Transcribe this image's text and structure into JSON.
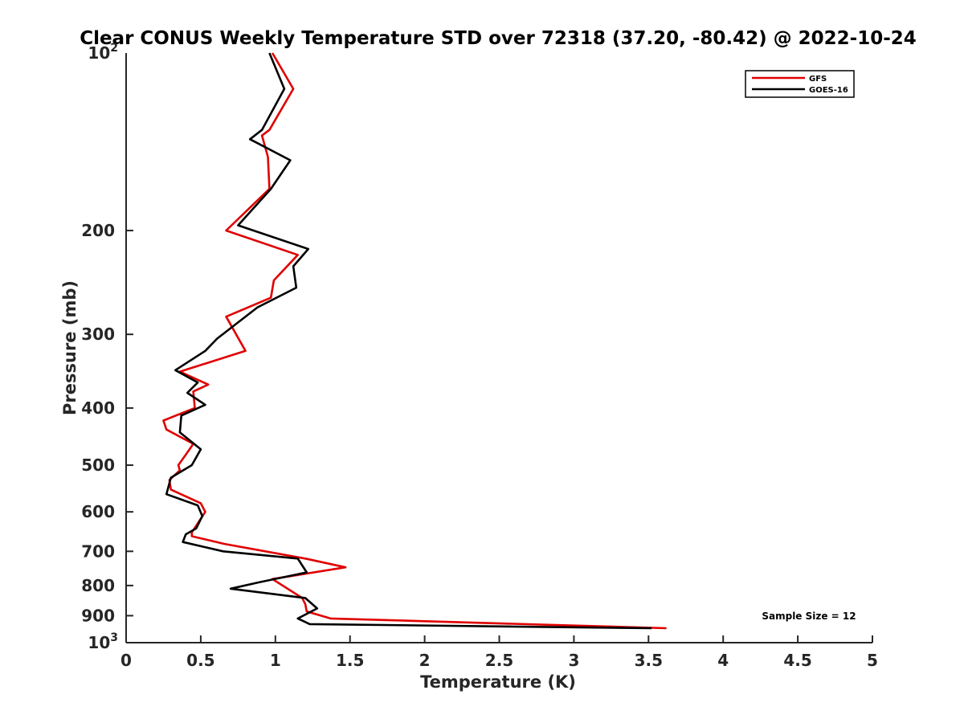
{
  "chart_data": {
    "type": "line",
    "title": "Clear CONUS Weekly Temperature STD over 72318 (37.20, -80.42) @ 2022-10-24",
    "xlabel": "Temperature (K)",
    "ylabel": "Pressure (mb)",
    "xlim": [
      0,
      5
    ],
    "ylim": [
      100,
      1000
    ],
    "y_scale": "log",
    "y_reversed": true,
    "x_ticks": [
      0,
      0.5,
      1,
      1.5,
      2,
      2.5,
      3,
      3.5,
      4,
      4.5,
      5
    ],
    "x_tick_labels": [
      "0",
      "0.5",
      "1",
      "1.5",
      "2",
      "2.5",
      "3",
      "3.5",
      "4",
      "4.5",
      "5"
    ],
    "y_ticks": [
      200,
      300,
      400,
      500,
      600,
      700,
      800,
      900
    ],
    "y_tick_labels": [
      "200",
      "300",
      "400",
      "500",
      "600",
      "700",
      "800",
      "900"
    ],
    "y_tick_top": {
      "base": "10",
      "exp": "2"
    },
    "y_tick_bottom": {
      "base": "10",
      "exp": "3"
    },
    "grid": false,
    "legend_position": "top-right",
    "annotation": "Sample Size = 12",
    "series": [
      {
        "name": "GFS",
        "color": "#e00000",
        "x": [
          0.98,
          1.12,
          0.96,
          0.91,
          0.95,
          0.96,
          0.67,
          1.15,
          0.99,
          0.97,
          0.67,
          0.8,
          0.36,
          0.55,
          0.45,
          0.46,
          0.25,
          0.27,
          0.45,
          0.4,
          0.35,
          0.36,
          0.29,
          0.3,
          0.5,
          0.53,
          0.44,
          0.44,
          0.66,
          1.2,
          1.47,
          0.98,
          1.18,
          1.2,
          1.21,
          1.37,
          3.62,
          3.62
        ],
        "y": [
          100,
          115,
          135,
          138,
          150,
          170,
          200,
          220,
          243,
          260,
          280,
          320,
          347,
          365,
          375,
          400,
          420,
          435,
          460,
          480,
          500,
          510,
          530,
          550,
          580,
          600,
          650,
          660,
          680,
          720,
          745,
          780,
          840,
          860,
          885,
          910,
          945,
          945
        ]
      },
      {
        "name": "GOES-16",
        "color": "#000000",
        "x": [
          0.96,
          1.06,
          0.91,
          0.83,
          1.1,
          0.97,
          0.75,
          1.22,
          1.12,
          1.14,
          0.88,
          0.61,
          0.53,
          0.33,
          0.48,
          0.41,
          0.53,
          0.37,
          0.36,
          0.5,
          0.44,
          0.3,
          0.27,
          0.48,
          0.51,
          0.47,
          0.4,
          0.38,
          0.65,
          1.15,
          1.21,
          0.89,
          0.7,
          1.2,
          1.28,
          1.15,
          1.23,
          3.52
        ],
        "y": [
          100,
          115,
          135,
          140,
          152,
          170,
          196,
          215,
          230,
          250,
          270,
          305,
          320,
          345,
          362,
          377,
          395,
          412,
          440,
          470,
          500,
          525,
          560,
          585,
          610,
          640,
          655,
          675,
          700,
          720,
          760,
          790,
          810,
          840,
          875,
          910,
          930,
          945
        ]
      }
    ]
  }
}
